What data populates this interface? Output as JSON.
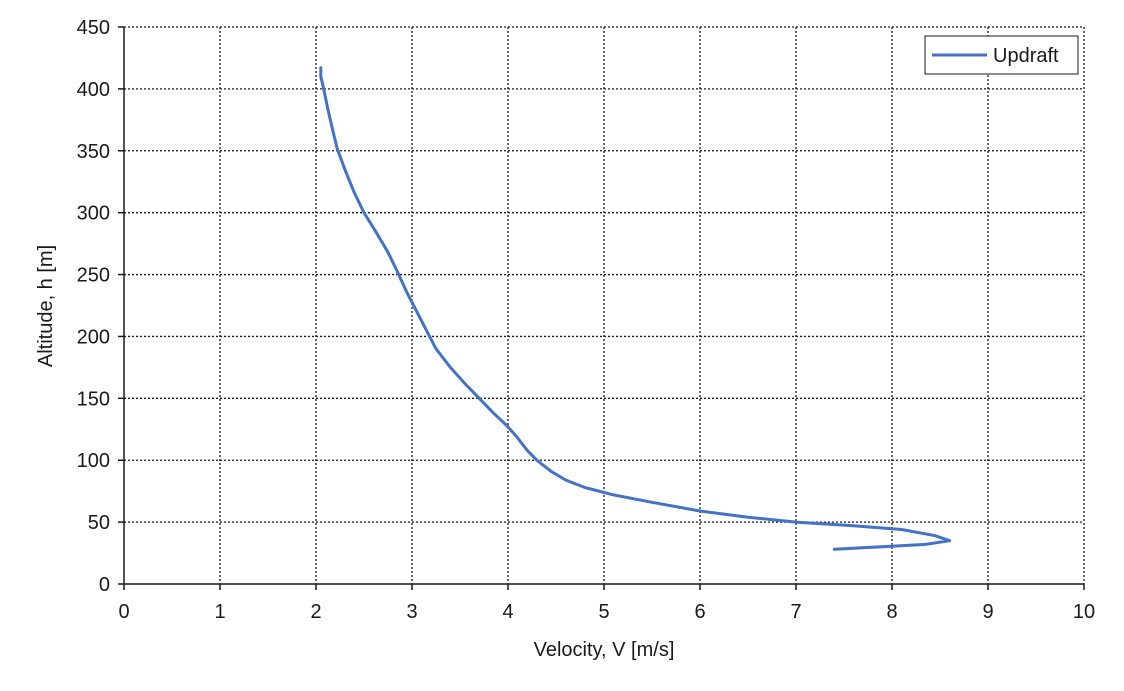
{
  "chart_data": {
    "type": "line",
    "title": "",
    "xlabel": "Velocity, V [m/s]",
    "ylabel": "Altitude, h [m]",
    "xlim": [
      0,
      10
    ],
    "ylim": [
      0,
      450
    ],
    "x_ticks": [
      0,
      1,
      2,
      3,
      4,
      5,
      6,
      7,
      8,
      9,
      10
    ],
    "y_ticks": [
      0,
      50,
      100,
      150,
      200,
      250,
      300,
      350,
      400,
      450
    ],
    "x_tick_labels": [
      "0",
      "1",
      "2",
      "3",
      "4",
      "5",
      "6",
      "7",
      "8",
      "9",
      "10"
    ],
    "y_tick_labels": [
      "0",
      "50",
      "100",
      "150",
      "200",
      "250",
      "300",
      "350",
      "400",
      "450"
    ],
    "grid": true,
    "legend_position": "top-right",
    "series": [
      {
        "name": "Updraft",
        "color": "#4472C4",
        "points": [
          [
            7.4,
            28
          ],
          [
            8.35,
            32
          ],
          [
            8.6,
            35
          ],
          [
            8.45,
            39
          ],
          [
            8.1,
            44
          ],
          [
            7.6,
            47
          ],
          [
            7.0,
            50
          ],
          [
            6.5,
            54
          ],
          [
            6.0,
            59
          ],
          [
            5.5,
            66
          ],
          [
            5.1,
            72
          ],
          [
            4.8,
            78
          ],
          [
            4.6,
            84
          ],
          [
            4.45,
            91
          ],
          [
            4.3,
            100
          ],
          [
            4.2,
            108
          ],
          [
            4.1,
            118
          ],
          [
            4.0,
            127
          ],
          [
            3.85,
            138
          ],
          [
            3.7,
            150
          ],
          [
            3.55,
            162
          ],
          [
            3.4,
            175
          ],
          [
            3.25,
            190
          ],
          [
            3.15,
            205
          ],
          [
            3.05,
            220
          ],
          [
            2.95,
            235
          ],
          [
            2.85,
            252
          ],
          [
            2.75,
            268
          ],
          [
            2.62,
            285
          ],
          [
            2.5,
            300
          ],
          [
            2.4,
            316
          ],
          [
            2.3,
            335
          ],
          [
            2.22,
            352
          ],
          [
            2.17,
            368
          ],
          [
            2.12,
            385
          ],
          [
            2.08,
            400
          ],
          [
            2.05,
            410
          ],
          [
            2.05,
            417
          ]
        ]
      }
    ]
  }
}
